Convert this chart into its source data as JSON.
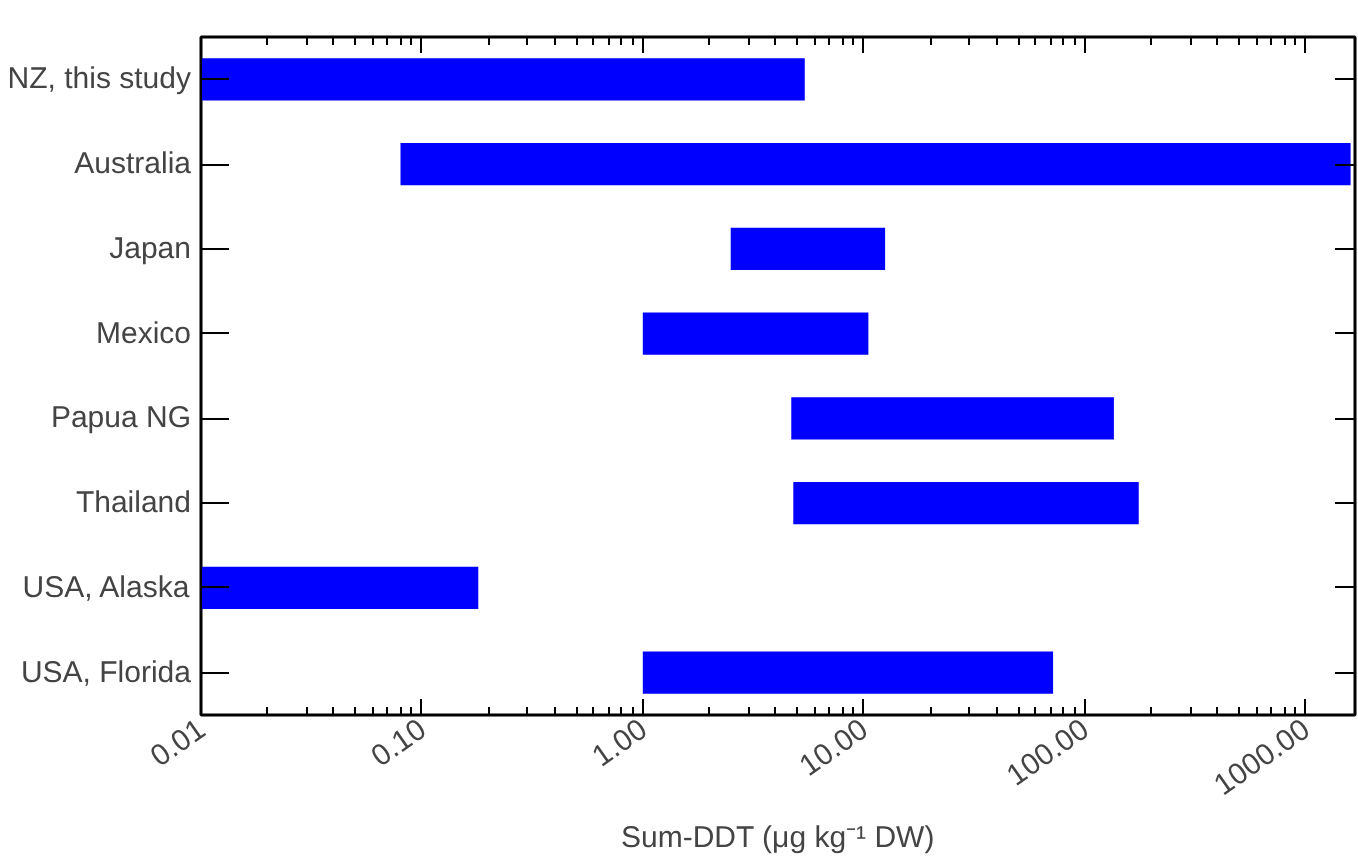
{
  "chart_data": {
    "type": "bar",
    "orientation": "horizontal",
    "xlabel": "Sum-DDT (μg kg⁻¹ DW)",
    "categories": [
      "NZ, this study",
      "Australia",
      "Japan",
      "Mexico",
      "Papua NG",
      "Thailand",
      "USA, Alaska",
      "USA, Florida"
    ],
    "base": [
      0.01,
      0.08,
      2.5,
      1.0,
      4.7,
      4.8,
      0.01,
      1.0
    ],
    "values": [
      5.4,
      1600,
      10,
      9.5,
      131,
      171,
      0.17,
      71
    ],
    "color": "#0000ff",
    "log": "x",
    "grid": false,
    "xlim": [
      0.01,
      1675
    ],
    "xticks": [
      {
        "value": 0.01,
        "label": "0.01"
      },
      {
        "value": 0.1,
        "label": "0.10"
      },
      {
        "value": 1,
        "label": "1.00"
      },
      {
        "value": 10,
        "label": "10.00"
      },
      {
        "value": 100,
        "label": "100.00"
      },
      {
        "value": 1000,
        "label": "1000.00"
      }
    ]
  }
}
